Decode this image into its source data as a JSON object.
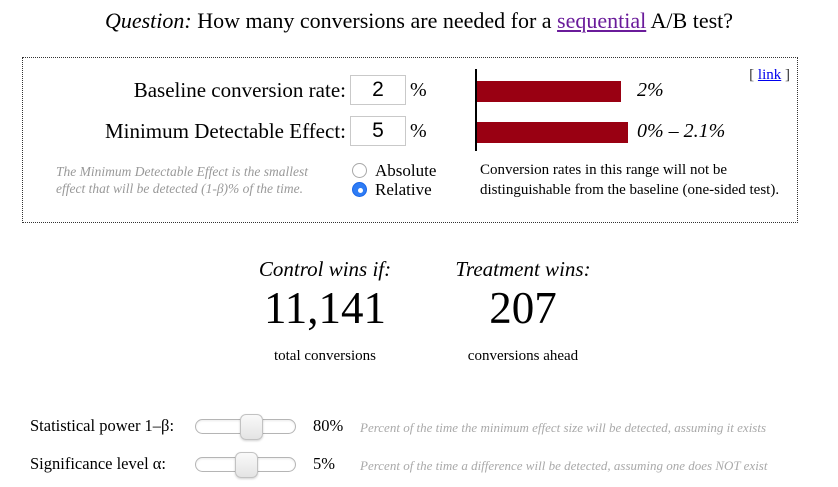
{
  "title": {
    "prefix": "Question:",
    "before_link": " How many conversions are needed for a ",
    "link_text": "sequential",
    "after_link": " A/B test?",
    "link_color": "#6a1b9a"
  },
  "panel": {
    "permalink": {
      "open": "[",
      "label": "link",
      "close": "]",
      "link_color": "#0000ee"
    },
    "fields": [
      {
        "label": "Baseline conversion rate:",
        "value": "2",
        "unit": "%"
      },
      {
        "label": "Minimum Detectable Effect:",
        "value": "5",
        "unit": "%"
      }
    ],
    "mde_note": {
      "line1": "The Minimum Detectable Effect is the smallest",
      "line2": "effect that will be detected (1-β)% of the time."
    },
    "radios": [
      {
        "label": "Absolute",
        "selected": false
      },
      {
        "label": "Relative",
        "selected": true
      }
    ],
    "range_note": {
      "line1": "Conversion rates in this range will not be",
      "line2": "distinguishable from the baseline (one-sided test)."
    }
  },
  "results": {
    "control": {
      "heading": "Control wins if:",
      "value": "11,141",
      "caption": "total conversions"
    },
    "treatment": {
      "heading": "Treatment wins:",
      "value": "207",
      "caption": "conversions ahead"
    }
  },
  "sliders": [
    {
      "label": "Statistical power 1–β:",
      "value": "80%",
      "position_pct": 55,
      "note": "Percent of the time the minimum effect size will be detected, assuming it exists"
    },
    {
      "label": "Significance level α:",
      "value": "5%",
      "position_pct": 50,
      "note": "Percent of the time a difference will be detected, assuming one does NOT exist"
    }
  ],
  "chart_data": {
    "type": "bar",
    "orientation": "horizontal",
    "categories": [
      "Baseline conversion rate",
      "Range not distinguishable from baseline"
    ],
    "values": [
      2,
      2.1
    ],
    "value_labels": [
      "2%",
      "0% – 2.1%"
    ],
    "xlim": [
      0,
      2.3
    ],
    "bar_color": "#990012",
    "legend": "none",
    "grid": false
  }
}
